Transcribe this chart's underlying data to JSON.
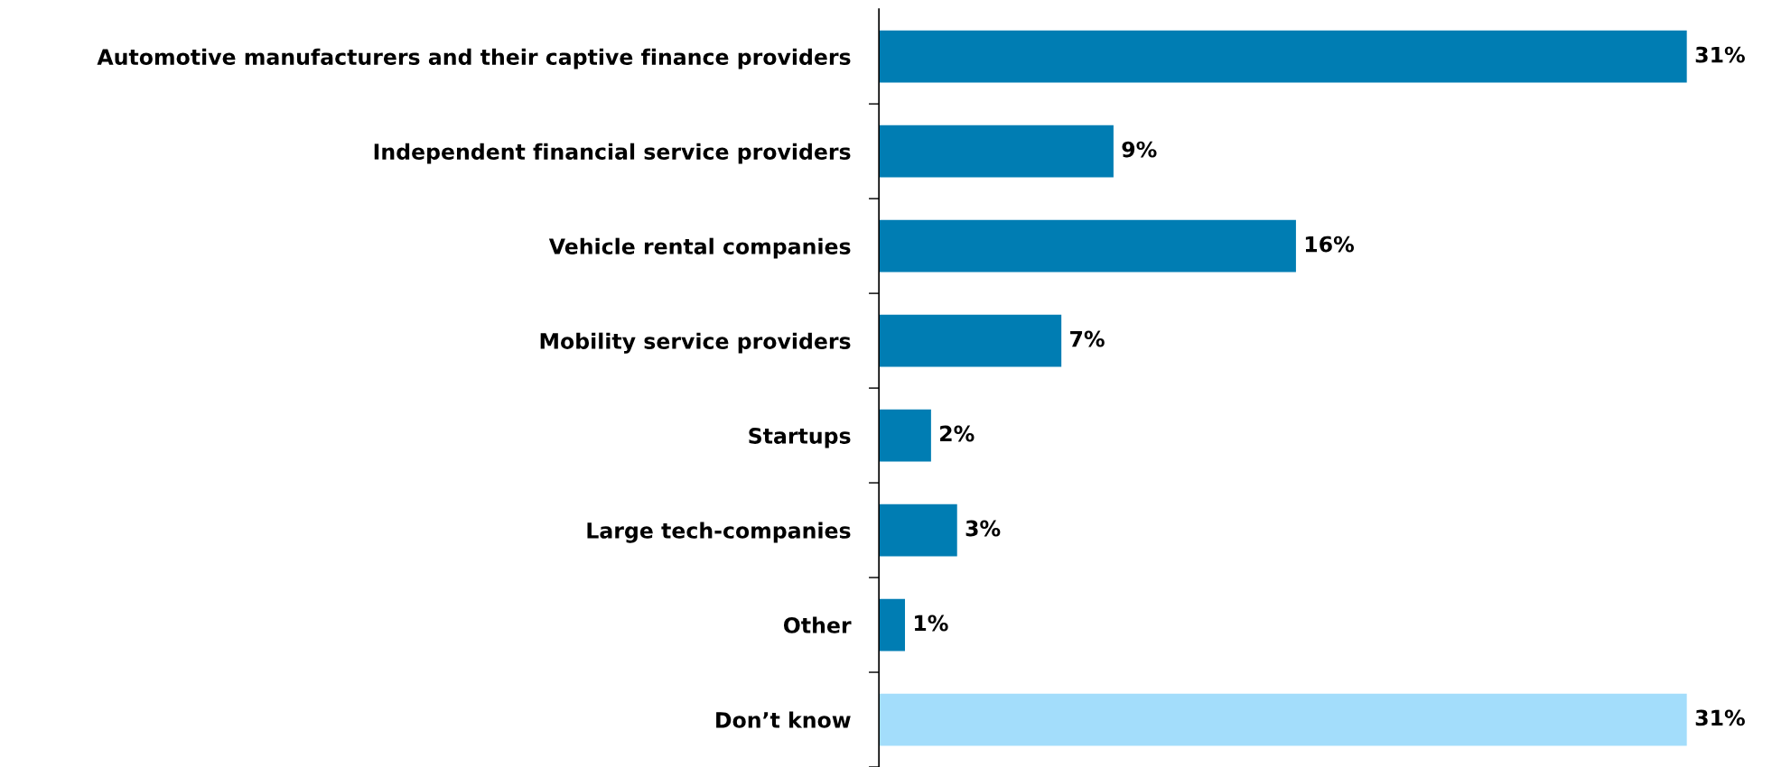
{
  "chart_data": {
    "type": "bar",
    "orientation": "horizontal",
    "categories": [
      "Automotive manufacturers and their captive finance providers",
      "Independent financial service providers",
      "Vehicle rental companies",
      "Mobility service providers",
      "Startups",
      "Large tech-companies",
      "Other",
      "Don’t know"
    ],
    "values": [
      31,
      9,
      16,
      7,
      2,
      3,
      1,
      31
    ],
    "colors": [
      "#007db3",
      "#007db3",
      "#007db3",
      "#007db3",
      "#007db3",
      "#007db3",
      "#007db3",
      "#a3ddfb"
    ],
    "value_labels": [
      "31%",
      "9%",
      "16%",
      "7%",
      "2%",
      "3%",
      "1%",
      "31%"
    ],
    "grid": false,
    "legend": false
  }
}
